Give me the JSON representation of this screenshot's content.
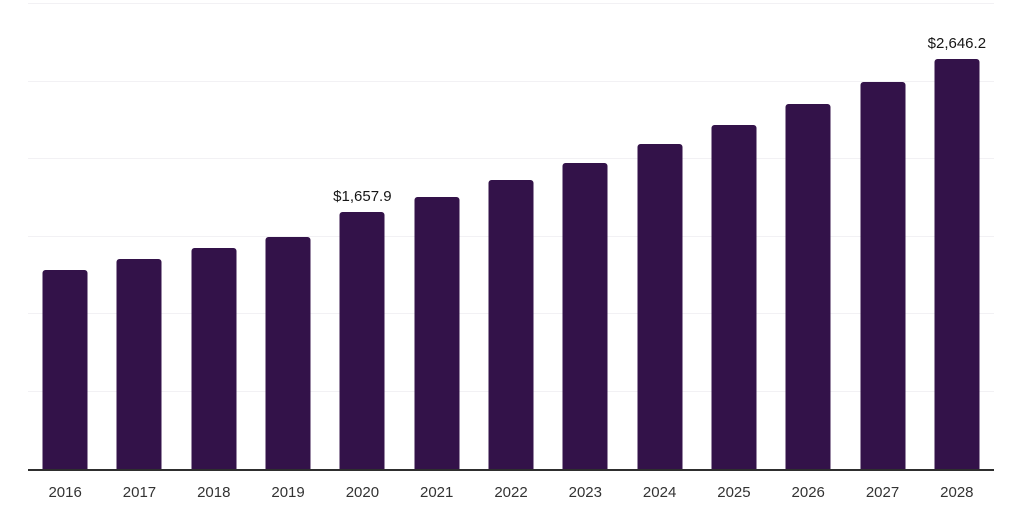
{
  "chart_data": {
    "type": "bar",
    "title": "",
    "xlabel": "",
    "ylabel": "",
    "categories": [
      "2016",
      "2017",
      "2018",
      "2019",
      "2020",
      "2021",
      "2022",
      "2023",
      "2024",
      "2025",
      "2026",
      "2027",
      "2028"
    ],
    "values": [
      1283.0,
      1354.0,
      1426.0,
      1497.0,
      1657.9,
      1757.7,
      1863.5,
      1975.6,
      2094.5,
      2220.6,
      2354.2,
      2495.9,
      2646.2
    ],
    "data_labels": {
      "2020": "$1,657.9",
      "2028": "$2,646.2"
    },
    "ylim": [
      0,
      3000
    ],
    "gridline_step": 500,
    "grid": "horizontal-only",
    "legend": "none",
    "y_axis_tick_labels": "none"
  },
  "colors": {
    "bar": "#331249",
    "grid": "#f2f1f4",
    "axis": "#2e2e2e",
    "tick_label": "#333333",
    "value_label": "#161616",
    "background": "#ffffff"
  }
}
